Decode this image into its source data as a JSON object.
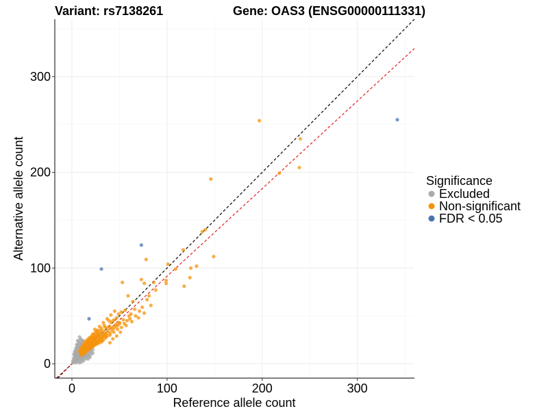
{
  "chart_data": {
    "type": "scatter",
    "title_left": "Variant: rs7138261",
    "title_right": "Gene: OAS3 (ENSG00000111331)",
    "xlabel": "Reference allele count",
    "ylabel": "Alternative allele count",
    "xlim": [
      -18,
      360
    ],
    "ylim": [
      -15,
      360
    ],
    "xticks": [
      0,
      100,
      200,
      300
    ],
    "yticks": [
      0,
      100,
      200,
      300
    ],
    "grid": true,
    "legend": {
      "title": "Significance",
      "placement": "right",
      "entries": [
        {
          "label": "Excluded",
          "color": "#aaaaaa"
        },
        {
          "label": "Non-significant",
          "color": "#f5930a"
        },
        {
          "label": "FDR < 0.05",
          "color": "#4a74b0"
        }
      ]
    },
    "reference_lines": [
      {
        "name": "identity",
        "slope": 1,
        "intercept": 0,
        "color": "#000000",
        "dash": true
      },
      {
        "name": "fitted",
        "slope": 0.915,
        "intercept": 0,
        "color": "#e41a1c",
        "dash": true
      }
    ],
    "series": [
      {
        "name": "Excluded",
        "color": "#aaaaaa",
        "points": [
          [
            2,
            2
          ],
          [
            3,
            4
          ],
          [
            4,
            3
          ],
          [
            5,
            5
          ],
          [
            6,
            4
          ],
          [
            7,
            6
          ],
          [
            8,
            7
          ],
          [
            5,
            8
          ],
          [
            6,
            10
          ],
          [
            4,
            6
          ],
          [
            7,
            12
          ],
          [
            8,
            14
          ],
          [
            9,
            9
          ],
          [
            10,
            10
          ],
          [
            3,
            7
          ],
          [
            5,
            12
          ],
          [
            6,
            15
          ],
          [
            7,
            9
          ],
          [
            9,
            11
          ],
          [
            10,
            13
          ],
          [
            11,
            8
          ],
          [
            12,
            10
          ],
          [
            8,
            5
          ],
          [
            9,
            6
          ],
          [
            10,
            4
          ],
          [
            6,
            2
          ],
          [
            4,
            1
          ],
          [
            3,
            9
          ],
          [
            5,
            3
          ],
          [
            7,
            3
          ],
          [
            11,
            14
          ],
          [
            12,
            16
          ],
          [
            13,
            12
          ],
          [
            9,
            18
          ],
          [
            10,
            20
          ],
          [
            8,
            22
          ],
          [
            7,
            17
          ],
          [
            6,
            19
          ],
          [
            14,
            9
          ],
          [
            15,
            11
          ],
          [
            16,
            13
          ],
          [
            13,
            7
          ],
          [
            11,
            5
          ],
          [
            12,
            3
          ],
          [
            2,
            6
          ],
          [
            1,
            3
          ],
          [
            4,
            11
          ],
          [
            5,
            14
          ],
          [
            6,
            12
          ],
          [
            8,
            16
          ],
          [
            9,
            15
          ],
          [
            10,
            17
          ],
          [
            11,
            19
          ],
          [
            7,
            21
          ],
          [
            6,
            24
          ],
          [
            5,
            17
          ],
          [
            4,
            13
          ],
          [
            3,
            11
          ],
          [
            12,
            6
          ],
          [
            14,
            5
          ],
          [
            10,
            2
          ],
          [
            8,
            1
          ],
          [
            15,
            8
          ],
          [
            16,
            6
          ],
          [
            17,
            9
          ],
          [
            18,
            11
          ],
          [
            13,
            15
          ],
          [
            14,
            17
          ],
          [
            12,
            20
          ],
          [
            11,
            23
          ],
          [
            10,
            25
          ],
          [
            9,
            26
          ],
          [
            8,
            28
          ],
          [
            7,
            24
          ],
          [
            6,
            20
          ],
          [
            15,
            14
          ],
          [
            16,
            16
          ],
          [
            17,
            18
          ],
          [
            18,
            14
          ],
          [
            19,
            12
          ],
          [
            20,
            10
          ],
          [
            21,
            13
          ],
          [
            3,
            2
          ],
          [
            2,
            4
          ],
          [
            1,
            1
          ],
          [
            6,
            7
          ],
          [
            7,
            8
          ],
          [
            8,
            10
          ],
          [
            9,
            8
          ],
          [
            10,
            7
          ],
          [
            11,
            11
          ],
          [
            12,
            12
          ],
          [
            13,
            10
          ],
          [
            14,
            13
          ],
          [
            5,
            10
          ],
          [
            4,
            9
          ],
          [
            3,
            13
          ],
          [
            2,
            10
          ],
          [
            6,
            17
          ],
          [
            9,
            22
          ],
          [
            11,
            17
          ],
          [
            13,
            18
          ],
          [
            15,
            20
          ],
          [
            12,
            24
          ],
          [
            16,
            9
          ],
          [
            18,
            8
          ],
          [
            19,
            15
          ],
          [
            20,
            16
          ],
          [
            22,
            11
          ],
          [
            22,
            15
          ],
          [
            17,
            5
          ],
          [
            19,
            7
          ],
          [
            5,
            20
          ],
          [
            4,
            16
          ],
          [
            8,
            19
          ],
          [
            10,
            11
          ]
        ]
      },
      {
        "name": "Non-significant",
        "color": "#f5930a",
        "points": [
          [
            197,
            254
          ],
          [
            146,
            193
          ],
          [
            240,
            235
          ],
          [
            239,
            205
          ],
          [
            218,
            199
          ],
          [
            117,
            119
          ],
          [
            149,
            112
          ],
          [
            137,
            138
          ],
          [
            140,
            140
          ],
          [
            78,
            109
          ],
          [
            101,
            104
          ],
          [
            125,
            100
          ],
          [
            131,
            102
          ],
          [
            109,
            99
          ],
          [
            124,
            90
          ],
          [
            99,
            87
          ],
          [
            99,
            84
          ],
          [
            118,
            81
          ],
          [
            88,
            77
          ],
          [
            81,
            71
          ],
          [
            83,
            61
          ],
          [
            86,
            85
          ],
          [
            76,
            84
          ],
          [
            73,
            88
          ],
          [
            53,
            85
          ],
          [
            59,
            71
          ],
          [
            64,
            65
          ],
          [
            79,
            67
          ],
          [
            74,
            59
          ],
          [
            76,
            53
          ],
          [
            70,
            48
          ],
          [
            66,
            57
          ],
          [
            56,
            56
          ],
          [
            52,
            54
          ],
          [
            49,
            52
          ],
          [
            47,
            48
          ],
          [
            45,
            46
          ],
          [
            43,
            45
          ],
          [
            41,
            43
          ],
          [
            39,
            39
          ],
          [
            37,
            37
          ],
          [
            35,
            38
          ],
          [
            33,
            34
          ],
          [
            31,
            31
          ],
          [
            30,
            33
          ],
          [
            29,
            30
          ],
          [
            28,
            28
          ],
          [
            27,
            29
          ],
          [
            26,
            26
          ],
          [
            25,
            27
          ],
          [
            24,
            25
          ],
          [
            23,
            24
          ],
          [
            22,
            22
          ],
          [
            21,
            23
          ],
          [
            20,
            21
          ],
          [
            19,
            20
          ],
          [
            18,
            19
          ],
          [
            17,
            18
          ],
          [
            16,
            17
          ],
          [
            15,
            16
          ],
          [
            14,
            14
          ],
          [
            13,
            14
          ],
          [
            12,
            13
          ],
          [
            11,
            12
          ],
          [
            10,
            11
          ],
          [
            9,
            12
          ],
          [
            32,
            24
          ],
          [
            36,
            28
          ],
          [
            40,
            30
          ],
          [
            44,
            33
          ],
          [
            48,
            36
          ],
          [
            52,
            38
          ],
          [
            55,
            42
          ],
          [
            58,
            45
          ],
          [
            61,
            47
          ],
          [
            35,
            32
          ],
          [
            38,
            34
          ],
          [
            42,
            38
          ],
          [
            46,
            41
          ],
          [
            50,
            43
          ],
          [
            54,
            46
          ],
          [
            60,
            50
          ],
          [
            62,
            52
          ],
          [
            45,
            55
          ],
          [
            41,
            51
          ],
          [
            37,
            47
          ],
          [
            33,
            43
          ],
          [
            29,
            39
          ],
          [
            27,
            35
          ],
          [
            25,
            33
          ],
          [
            23,
            31
          ],
          [
            21,
            29
          ],
          [
            19,
            26
          ],
          [
            17,
            24
          ],
          [
            15,
            22
          ],
          [
            13,
            19
          ],
          [
            12,
            17
          ],
          [
            14,
            19
          ],
          [
            16,
            21
          ],
          [
            18,
            23
          ],
          [
            20,
            24
          ],
          [
            22,
            26
          ],
          [
            24,
            28
          ],
          [
            26,
            30
          ],
          [
            28,
            32
          ],
          [
            30,
            35
          ],
          [
            18,
            15
          ],
          [
            20,
            17
          ],
          [
            22,
            18
          ],
          [
            24,
            20
          ],
          [
            26,
            22
          ],
          [
            28,
            24
          ],
          [
            30,
            26
          ],
          [
            32,
            28
          ],
          [
            34,
            30
          ],
          [
            36,
            31
          ],
          [
            16,
            14
          ],
          [
            14,
            12
          ],
          [
            12,
            11
          ],
          [
            10,
            9
          ],
          [
            19,
            17
          ],
          [
            21,
            19
          ],
          [
            23,
            21
          ],
          [
            25,
            22
          ],
          [
            27,
            23
          ],
          [
            29,
            25
          ],
          [
            31,
            27
          ],
          [
            33,
            29
          ],
          [
            15,
            18
          ],
          [
            17,
            20
          ],
          [
            19,
            22
          ],
          [
            21,
            25
          ],
          [
            23,
            27
          ],
          [
            25,
            29
          ],
          [
            27,
            31
          ],
          [
            11,
            15
          ],
          [
            13,
            16
          ],
          [
            15,
            19
          ],
          [
            17,
            22
          ],
          [
            19,
            24
          ],
          [
            21,
            27
          ],
          [
            8,
            13
          ],
          [
            10,
            14
          ],
          [
            12,
            18
          ],
          [
            14,
            21
          ],
          [
            16,
            23
          ],
          [
            40,
            22
          ],
          [
            43,
            26
          ],
          [
            47,
            29
          ],
          [
            51,
            33
          ],
          [
            57,
            40
          ],
          [
            63,
            44
          ],
          [
            67,
            50
          ],
          [
            71,
            55
          ],
          [
            39,
            45
          ],
          [
            34,
            40
          ],
          [
            31,
            37
          ],
          [
            26,
            34
          ],
          [
            24,
            36
          ],
          [
            22,
            31
          ],
          [
            20,
            28
          ],
          [
            18,
            27
          ],
          [
            16,
            25
          ],
          [
            14,
            23
          ],
          [
            12,
            20
          ],
          [
            10,
            17
          ],
          [
            9,
            14
          ],
          [
            11,
            10
          ],
          [
            13,
            11
          ],
          [
            15,
            13
          ],
          [
            17,
            15
          ],
          [
            19,
            16
          ],
          [
            21,
            18
          ],
          [
            23,
            19
          ],
          [
            25,
            20
          ],
          [
            27,
            21
          ],
          [
            29,
            22
          ],
          [
            31,
            23
          ],
          [
            33,
            25
          ],
          [
            35,
            27
          ],
          [
            37,
            29
          ],
          [
            40,
            32
          ],
          [
            42,
            35
          ],
          [
            44,
            37
          ],
          [
            46,
            39
          ],
          [
            48,
            40
          ],
          [
            50,
            42
          ]
        ]
      },
      {
        "name": "FDR < 0.05",
        "color": "#4a74b0",
        "points": [
          [
            342,
            255
          ],
          [
            73,
            124
          ],
          [
            31,
            99
          ],
          [
            18,
            47
          ]
        ]
      }
    ]
  }
}
